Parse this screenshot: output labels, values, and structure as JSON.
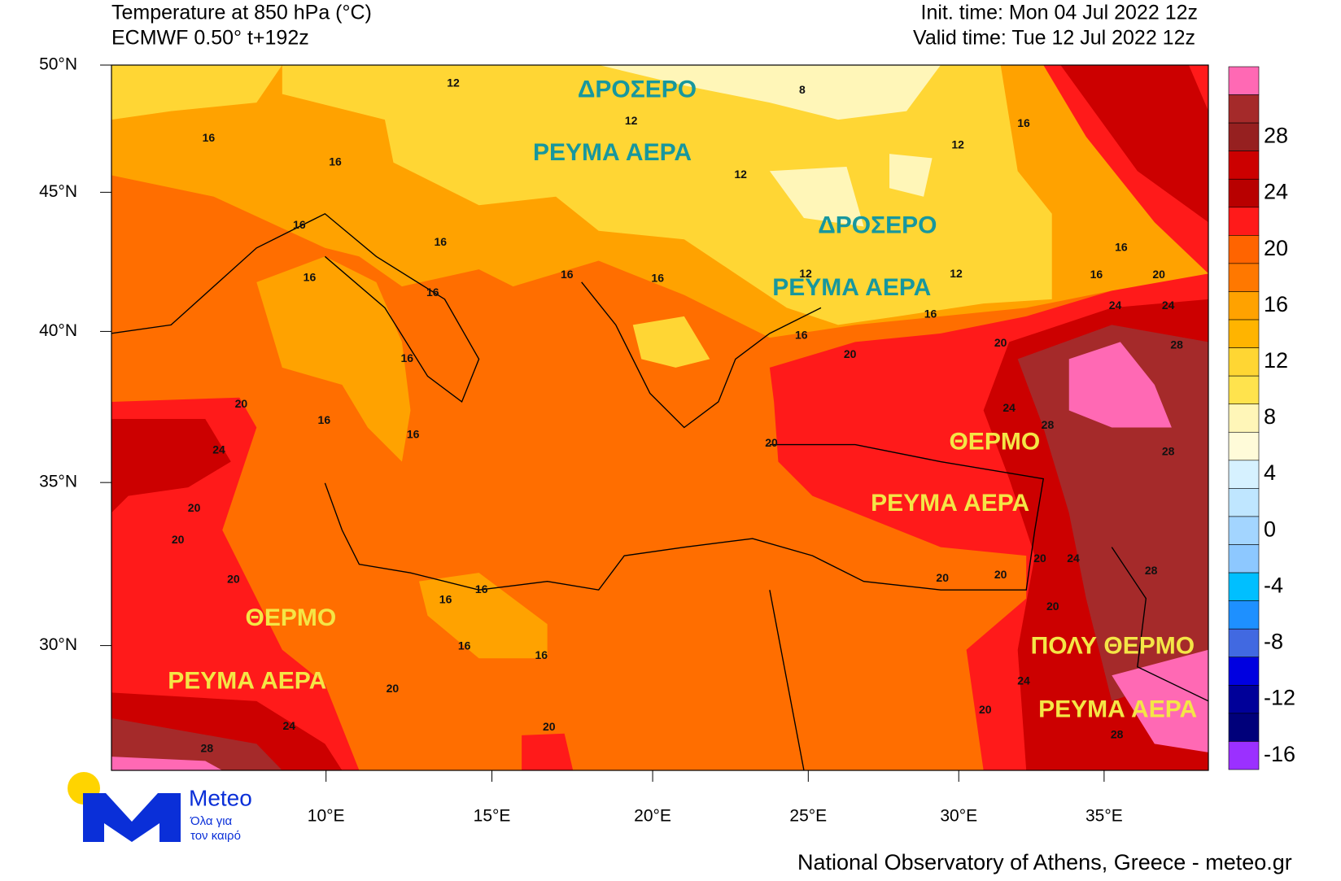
{
  "header": {
    "title": "Temperature at 850 hPa (°C)",
    "subtitle": "ECMWF 0.50° t+192z",
    "init_time": "Init. time: Mon 04 Jul 2022 12z",
    "valid_time": "Valid time: Tue 12 Jul 2022 12z"
  },
  "map": {
    "xlim": [
      3.75,
      38.7
    ],
    "ylim": [
      26.4,
      50
    ],
    "xticks": [
      {
        "value": 10,
        "label": "10°E"
      },
      {
        "value": 15,
        "label": "15°E"
      },
      {
        "value": 20,
        "label": "20°E"
      },
      {
        "value": 25,
        "label": "25°E"
      },
      {
        "value": 30,
        "label": "30°E"
      },
      {
        "value": 35,
        "label": "35°E"
      }
    ],
    "yticks": [
      {
        "value": 50,
        "label": "50°N"
      },
      {
        "value": 45,
        "label": "45°N"
      },
      {
        "value": 40,
        "label": "40°N"
      },
      {
        "value": 35,
        "label": "35°N"
      },
      {
        "value": 30,
        "label": "30°N"
      }
    ],
    "contour_labels": [
      12,
      8,
      12,
      16,
      16,
      12,
      16,
      12,
      16,
      16,
      16,
      16,
      16,
      16,
      12,
      12,
      16,
      20,
      16,
      24,
      24,
      16,
      16,
      20,
      20,
      28,
      16,
      20,
      24,
      16,
      16,
      20,
      28,
      24,
      28,
      20,
      20,
      20,
      24,
      28,
      20,
      20,
      20,
      16,
      16,
      20,
      16,
      16,
      20,
      24,
      20,
      24,
      20,
      28,
      28
    ],
    "annotations": [
      {
        "text": "ΔΡΟΣΕΡΟ",
        "color": "#17979e"
      },
      {
        "text": "ΡΕΥΜΑ ΑΕΡΑ",
        "color": "#17979e"
      },
      {
        "text": "ΔΡΟΣΕΡΟ",
        "color": "#17979e"
      },
      {
        "text": "ΡΕΥΜΑ ΑΕΡΑ",
        "color": "#17979e"
      },
      {
        "text": "ΘΕΡΜΟ",
        "color": "#f4e646"
      },
      {
        "text": "ΡΕΥΜΑ ΑΕΡΑ",
        "color": "#f4e646"
      },
      {
        "text": "ΘΕΡΜΟ",
        "color": "#f4e646"
      },
      {
        "text": "ΡΕΥΜΑ ΑΕΡΑ",
        "color": "#f4e646"
      },
      {
        "text": "ΠΟΛΥ ΘΕΡΜΟ",
        "color": "#f4e646"
      },
      {
        "text": "ΡΕΥΜΑ ΑΕΡΑ",
        "color": "#f4e646"
      }
    ]
  },
  "colorbar": {
    "ticks": [
      28,
      24,
      20,
      16,
      12,
      8,
      4,
      0,
      -4,
      -8,
      -12,
      -16
    ],
    "colors": [
      "#ff69b4",
      "#a52a2a",
      "#962020",
      "#cc0000",
      "#b80000",
      "#ff1a1a",
      "#ff6400",
      "#ff7800",
      "#ffa200",
      "#ffb400",
      "#ffd633",
      "#ffe34d",
      "#fff6b8",
      "#fffbd9",
      "#d6f1ff",
      "#bfe6ff",
      "#a3d5ff",
      "#8dc8ff",
      "#00bfff",
      "#1e90ff",
      "#4169e1",
      "#0000e0",
      "#000099",
      "#00007a",
      "#9b30ff"
    ]
  },
  "logo": {
    "name": "Meteo",
    "tagline_1": "Όλα για",
    "tagline_2": "τον καιρό"
  },
  "footer": "National Observatory of Athens, Greece - meteo.gr"
}
